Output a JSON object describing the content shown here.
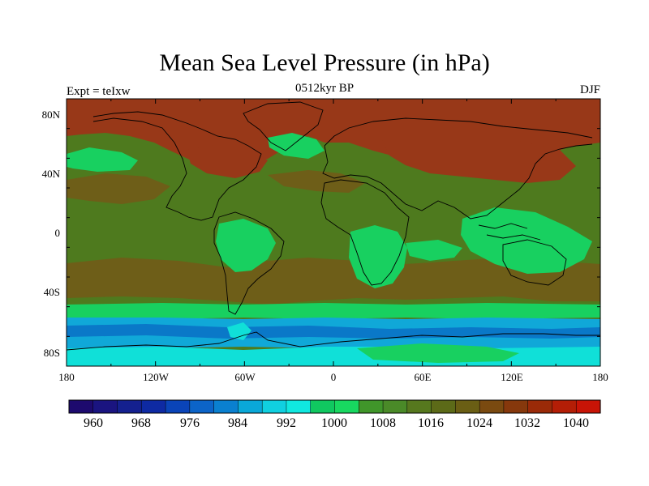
{
  "header": {
    "title": "Mean Sea Level Pressure (in hPa)",
    "subtitle": "0512kyr BP",
    "left_label": "Expt = teIxw",
    "right_label": "DJF"
  },
  "axes": {
    "y_ticks": [
      "80N",
      "40N",
      "0",
      "40S",
      "80S"
    ],
    "x_ticks": [
      "180",
      "120W",
      "60W",
      "0",
      "60E",
      "120E",
      "180"
    ]
  },
  "colorbar": {
    "labels": [
      "960",
      "968",
      "976",
      "984",
      "992",
      "1000",
      "1008",
      "1016",
      "1024",
      "1032",
      "1040"
    ],
    "colors": [
      "#1d0a6e",
      "#1a1480",
      "#14208f",
      "#0e2aa3",
      "#0a44b8",
      "#0c64c8",
      "#0a80d0",
      "#0aa8d8",
      "#10d0e0",
      "#10e8e0",
      "#10c860",
      "#18d860",
      "#40962a",
      "#4a8a28",
      "#56781e",
      "#5c6a18",
      "#6a5e14",
      "#7a4a10",
      "#86380c",
      "#9a2a08",
      "#b41e06",
      "#c81406"
    ]
  },
  "map": {
    "background": "#4e7a1e",
    "colors": {
      "high": "#983818",
      "mid_high": "#6e5e18",
      "mid": "#4e7a1e",
      "mid_low": "#3c9a2c",
      "low": "#18d060",
      "cyan": "#10e0d8",
      "light_blue": "#10a8d8",
      "blue": "#0a78c8",
      "coast": "#000000"
    }
  }
}
